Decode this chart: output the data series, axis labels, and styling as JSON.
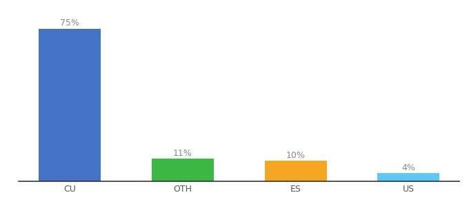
{
  "categories": [
    "CU",
    "OTH",
    "ES",
    "US"
  ],
  "values": [
    75,
    11,
    10,
    4
  ],
  "bar_colors": [
    "#4472c4",
    "#3cb844",
    "#f5a623",
    "#5bc8f5"
  ],
  "labels": [
    "75%",
    "11%",
    "10%",
    "4%"
  ],
  "ylim": [
    0,
    82
  ],
  "background_color": "#ffffff",
  "label_fontsize": 9,
  "tick_fontsize": 9,
  "bar_width": 0.55
}
